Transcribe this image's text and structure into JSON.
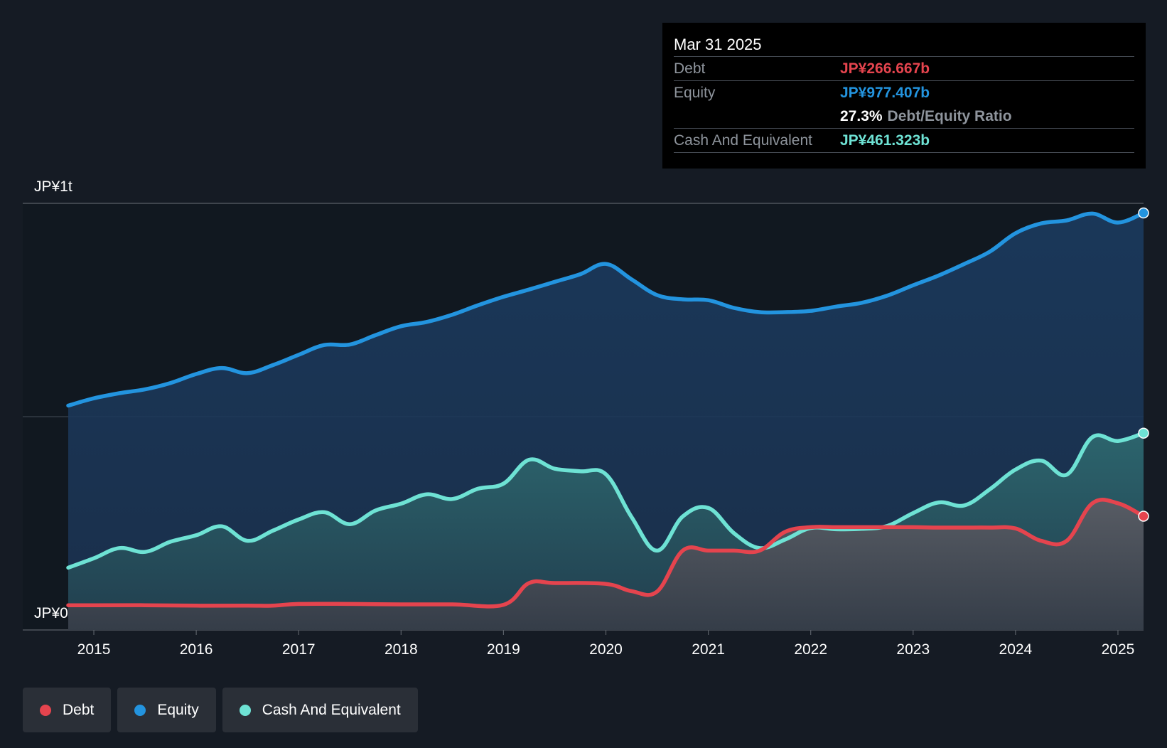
{
  "tooltip": {
    "date": "Mar 31 2025",
    "debt_label": "Debt",
    "debt_value": "JP¥266.667b",
    "equity_label": "Equity",
    "equity_value": "JP¥977.407b",
    "ratio_value": "27.3%",
    "ratio_label": "Debt/Equity Ratio",
    "cash_label": "Cash And Equivalent",
    "cash_value": "JP¥461.323b"
  },
  "legend": [
    {
      "label": "Debt",
      "color": "#e5444e"
    },
    {
      "label": "Equity",
      "color": "#2394df"
    },
    {
      "label": "Cash And Equivalent",
      "color": "#6ee2d4"
    }
  ],
  "chart_data": {
    "type": "area",
    "y_labels": {
      "top": "JP¥1t",
      "bottom": "JP¥0"
    },
    "ylim": [
      0,
      1000
    ],
    "y_unit": "JP¥ billions",
    "xlim": [
      2014.75,
      2025.25
    ],
    "x_ticks": [
      "2015",
      "2016",
      "2017",
      "2018",
      "2019",
      "2020",
      "2021",
      "2022",
      "2023",
      "2024",
      "2025"
    ],
    "grid": "horizontal",
    "legend_position": "bottom-left",
    "series": [
      {
        "name": "Equity",
        "color": "#2394df",
        "points": [
          [
            2014.75,
            526
          ],
          [
            2015.0,
            543
          ],
          [
            2015.25,
            555
          ],
          [
            2015.5,
            564
          ],
          [
            2015.75,
            579
          ],
          [
            2016.0,
            600
          ],
          [
            2016.25,
            614
          ],
          [
            2016.5,
            602
          ],
          [
            2016.75,
            621
          ],
          [
            2017.0,
            645
          ],
          [
            2017.25,
            668
          ],
          [
            2017.5,
            669
          ],
          [
            2017.75,
            691
          ],
          [
            2018.0,
            712
          ],
          [
            2018.25,
            722
          ],
          [
            2018.5,
            739
          ],
          [
            2018.75,
            761
          ],
          [
            2019.0,
            781
          ],
          [
            2019.25,
            798
          ],
          [
            2019.5,
            816
          ],
          [
            2019.75,
            834
          ],
          [
            2020.0,
            858
          ],
          [
            2020.25,
            822
          ],
          [
            2020.5,
            785
          ],
          [
            2020.75,
            775
          ],
          [
            2021.0,
            773
          ],
          [
            2021.25,
            755
          ],
          [
            2021.5,
            745
          ],
          [
            2021.75,
            745
          ],
          [
            2022.0,
            748
          ],
          [
            2022.25,
            758
          ],
          [
            2022.5,
            767
          ],
          [
            2022.75,
            784
          ],
          [
            2023.0,
            808
          ],
          [
            2023.25,
            831
          ],
          [
            2023.5,
            858
          ],
          [
            2023.75,
            887
          ],
          [
            2024.0,
            930
          ],
          [
            2024.25,
            953
          ],
          [
            2024.5,
            960
          ],
          [
            2024.75,
            976
          ],
          [
            2025.0,
            955
          ],
          [
            2025.25,
            977.407
          ]
        ]
      },
      {
        "name": "Cash And Equivalent",
        "color": "#6ee2d4",
        "points": [
          [
            2014.75,
            146
          ],
          [
            2015.0,
            168
          ],
          [
            2015.25,
            192
          ],
          [
            2015.5,
            183
          ],
          [
            2015.75,
            207
          ],
          [
            2016.0,
            222
          ],
          [
            2016.25,
            243
          ],
          [
            2016.5,
            209
          ],
          [
            2016.75,
            233
          ],
          [
            2017.0,
            259
          ],
          [
            2017.25,
            276
          ],
          [
            2017.5,
            248
          ],
          [
            2017.75,
            280
          ],
          [
            2018.0,
            296
          ],
          [
            2018.25,
            318
          ],
          [
            2018.5,
            307
          ],
          [
            2018.75,
            331
          ],
          [
            2019.0,
            343
          ],
          [
            2019.25,
            399
          ],
          [
            2019.5,
            378
          ],
          [
            2019.75,
            372
          ],
          [
            2020.0,
            365
          ],
          [
            2020.25,
            265
          ],
          [
            2020.5,
            186
          ],
          [
            2020.75,
            266
          ],
          [
            2021.0,
            286
          ],
          [
            2021.25,
            227
          ],
          [
            2021.5,
            192
          ],
          [
            2021.75,
            212
          ],
          [
            2022.0,
            239
          ],
          [
            2022.25,
            236
          ],
          [
            2022.5,
            237
          ],
          [
            2022.75,
            244
          ],
          [
            2023.0,
            274
          ],
          [
            2023.25,
            299
          ],
          [
            2023.5,
            292
          ],
          [
            2023.75,
            330
          ],
          [
            2024.0,
            376
          ],
          [
            2024.25,
            397
          ],
          [
            2024.5,
            364
          ],
          [
            2024.75,
            452
          ],
          [
            2025.0,
            443
          ],
          [
            2025.25,
            461.323
          ]
        ]
      },
      {
        "name": "Debt",
        "color": "#e5444e",
        "points": [
          [
            2014.75,
            58
          ],
          [
            2015.0,
            58
          ],
          [
            2015.5,
            58
          ],
          [
            2016.0,
            57
          ],
          [
            2016.5,
            57
          ],
          [
            2016.75,
            57
          ],
          [
            2017.0,
            61
          ],
          [
            2017.5,
            61
          ],
          [
            2018.0,
            60
          ],
          [
            2018.5,
            60
          ],
          [
            2019.0,
            59
          ],
          [
            2019.25,
            110
          ],
          [
            2019.5,
            110
          ],
          [
            2020.0,
            108
          ],
          [
            2020.25,
            91
          ],
          [
            2020.5,
            90
          ],
          [
            2020.75,
            186
          ],
          [
            2021.0,
            186
          ],
          [
            2021.25,
            186
          ],
          [
            2021.5,
            186
          ],
          [
            2021.75,
            230
          ],
          [
            2022.0,
            241
          ],
          [
            2022.25,
            241
          ],
          [
            2022.5,
            241
          ],
          [
            2022.75,
            241
          ],
          [
            2023.0,
            241
          ],
          [
            2023.25,
            240
          ],
          [
            2023.5,
            240
          ],
          [
            2023.75,
            240
          ],
          [
            2024.0,
            238
          ],
          [
            2024.25,
            209
          ],
          [
            2024.5,
            209
          ],
          [
            2024.75,
            297
          ],
          [
            2025.0,
            297
          ],
          [
            2025.25,
            266.667
          ]
        ]
      }
    ]
  }
}
